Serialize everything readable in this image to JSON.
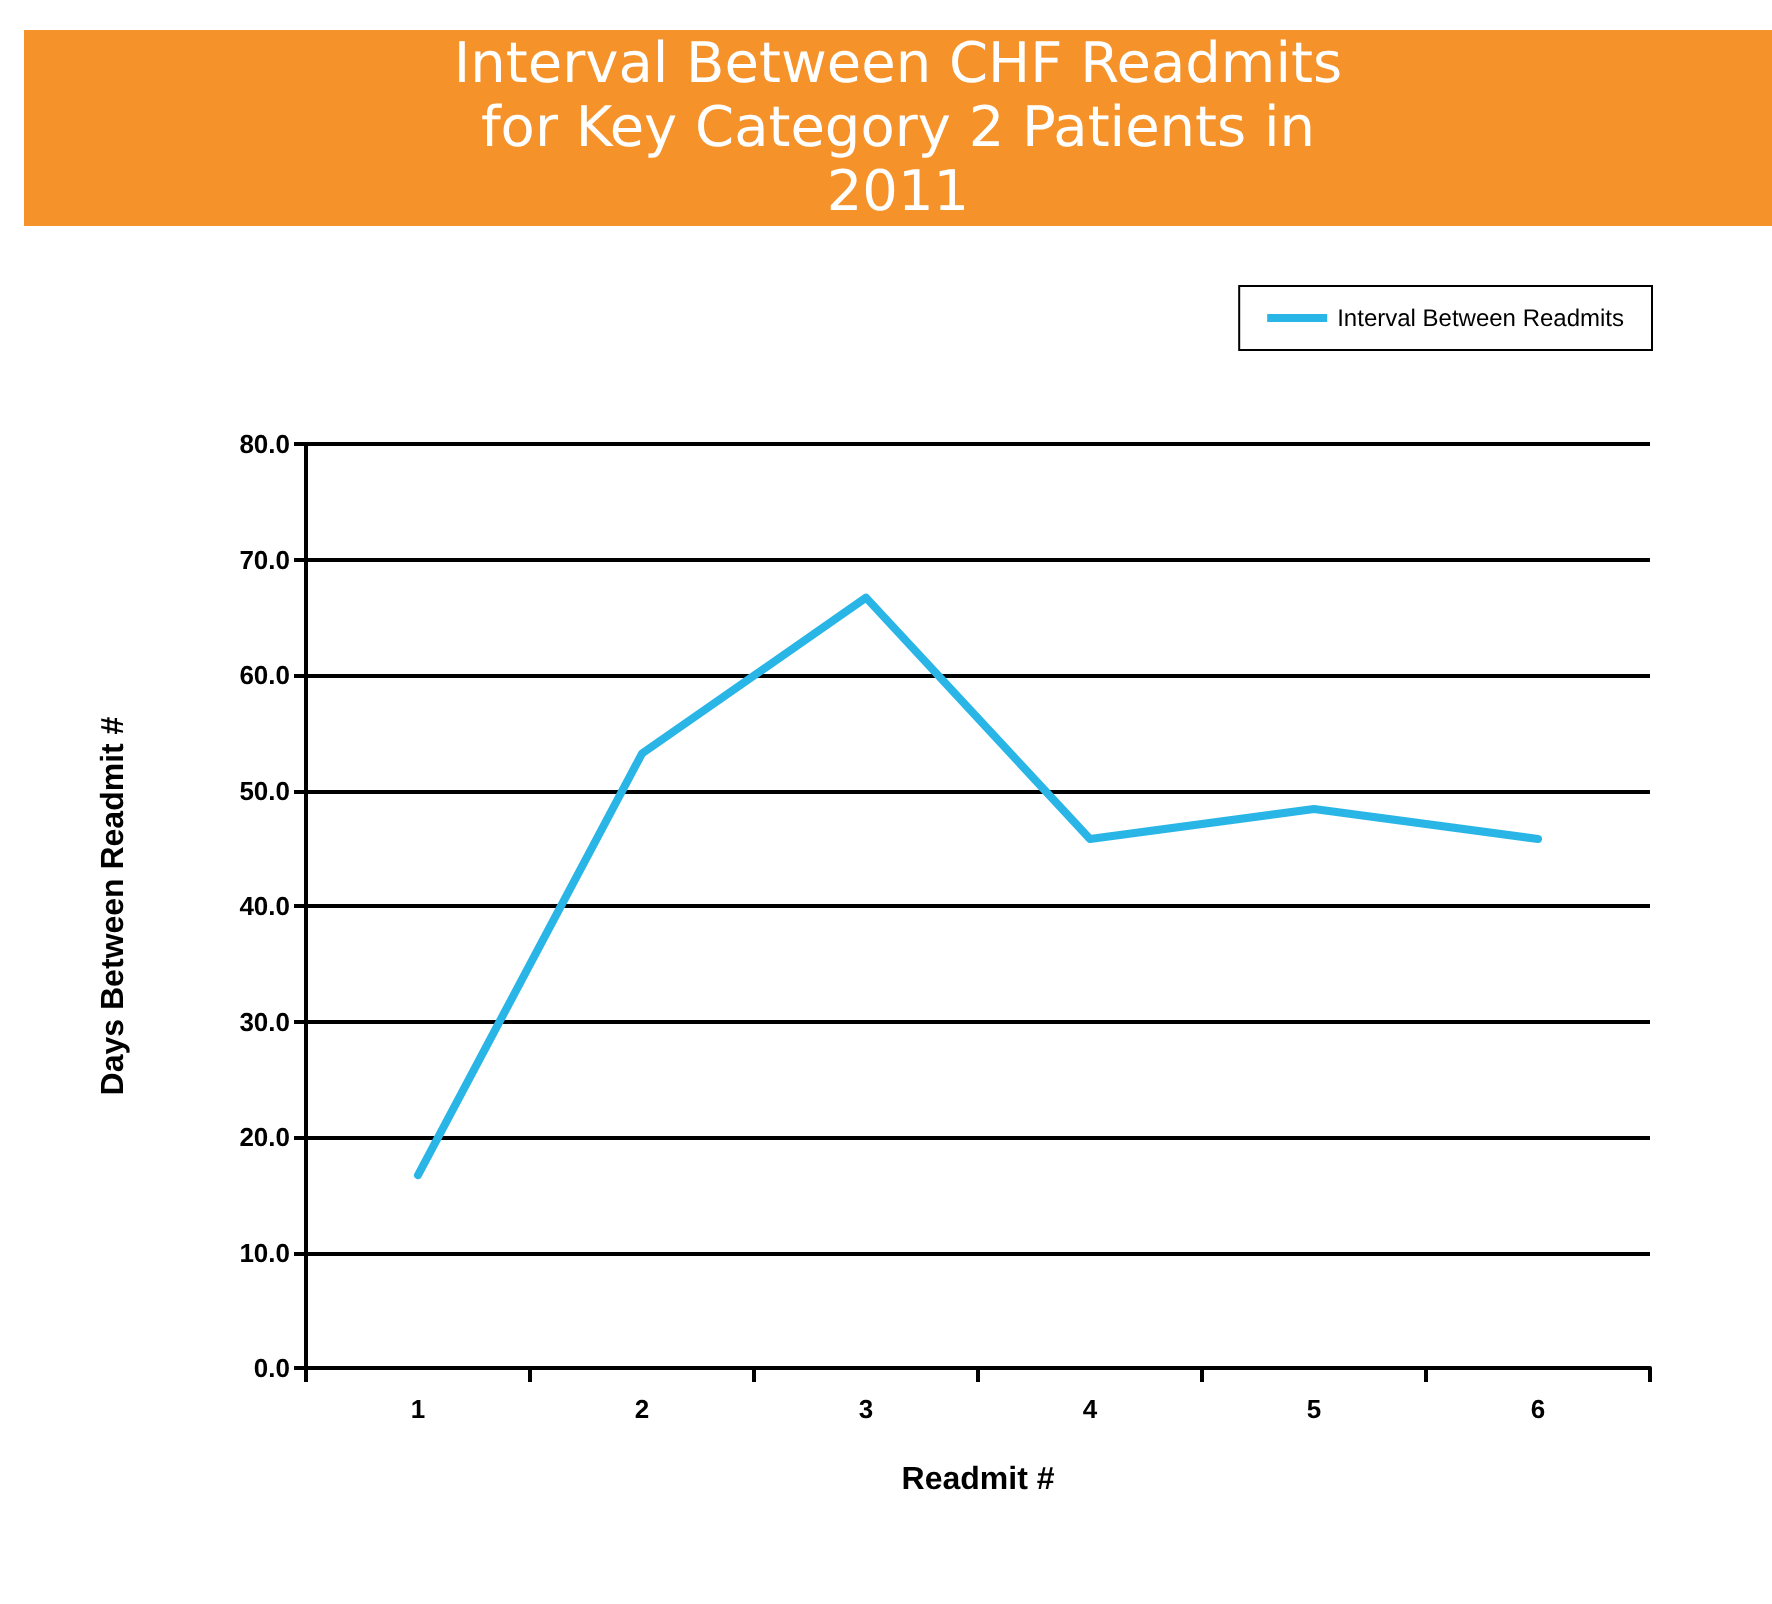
{
  "chart_data": {
    "type": "line",
    "title": "Interval Between CHF Readmits for Key Category 2 Patients in 2011",
    "xlabel": "Readmit #",
    "ylabel": "Days Between Readmit #",
    "categories": [
      "1",
      "2",
      "3",
      "4",
      "5",
      "6"
    ],
    "series": [
      {
        "name": "Interval Between Readmits",
        "color": "#29b6e6",
        "values": [
          16.7,
          53.2,
          66.7,
          45.8,
          48.4,
          45.8
        ]
      }
    ],
    "ylim": [
      0,
      80
    ],
    "yticks": [
      {
        "value": 0,
        "label": "0.0"
      },
      {
        "value": 10,
        "label": "10.0"
      },
      {
        "value": 20,
        "label": "20.0"
      },
      {
        "value": 30,
        "label": "30.0"
      },
      {
        "value": 40,
        "label": "40.0"
      },
      {
        "value": 50,
        "label": "50.0"
      },
      {
        "value": 60,
        "label": "60.0"
      },
      {
        "value": 70,
        "label": "70.0"
      },
      {
        "value": 80,
        "label": "80.0"
      }
    ],
    "grid": "y",
    "legend": "top right",
    "marker": "none",
    "line_style": "solid"
  }
}
